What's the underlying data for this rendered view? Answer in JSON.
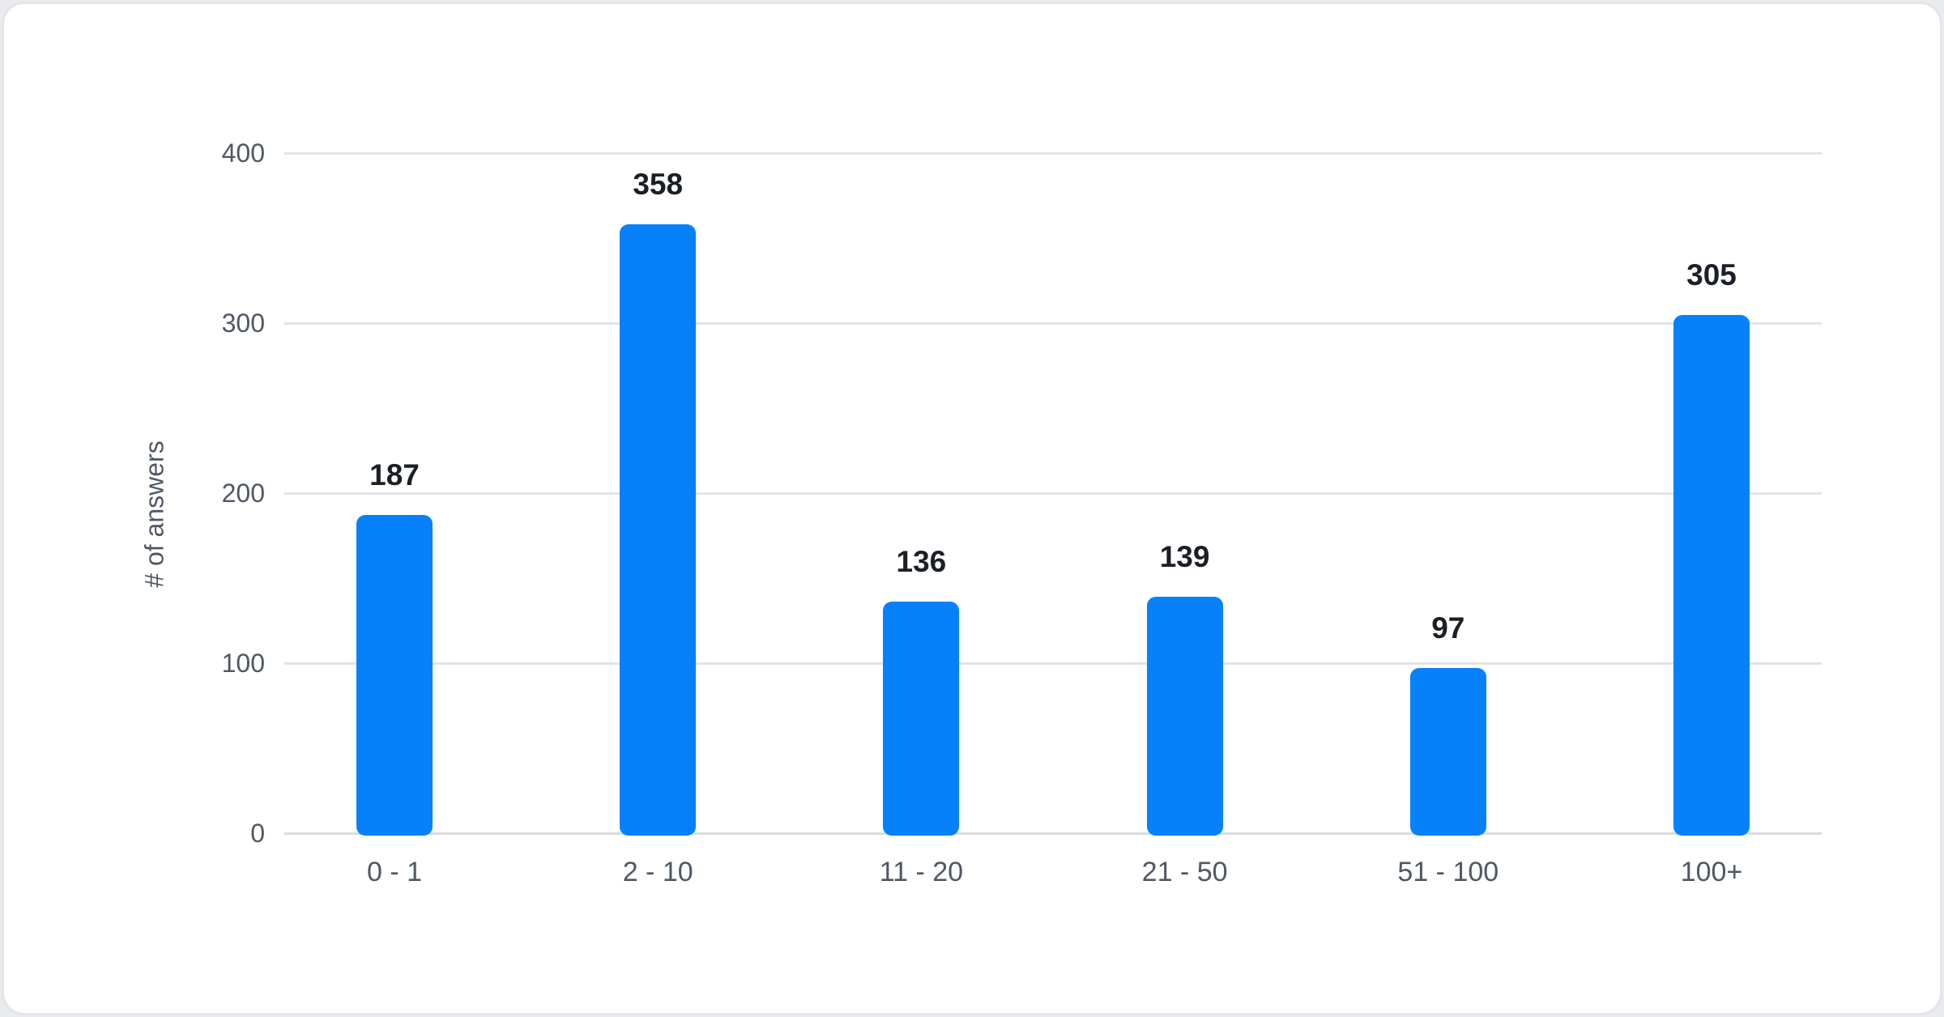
{
  "page": {
    "background_color": "#e9ebee",
    "card_background": "#ffffff",
    "card_border_color": "#e3e5e9"
  },
  "chart_data": {
    "type": "bar",
    "categories": [
      "0 - 1",
      "2 - 10",
      "11 - 20",
      "21 - 50",
      "51 - 100",
      "100+"
    ],
    "values": [
      187,
      358,
      136,
      139,
      97,
      305
    ],
    "title": "",
    "xlabel": "",
    "ylabel": "# of answers",
    "ylim": [
      0,
      400
    ],
    "yticks": [
      0,
      100,
      200,
      300,
      400
    ],
    "grid": "horizontal",
    "legend": "none",
    "bar_color": "#0781fa",
    "value_label_color": "#1b1f26",
    "axis_text_color": "#4e5863",
    "gridline_color": "#e3e4e7",
    "zeroline_color": "#d9dbdf"
  }
}
